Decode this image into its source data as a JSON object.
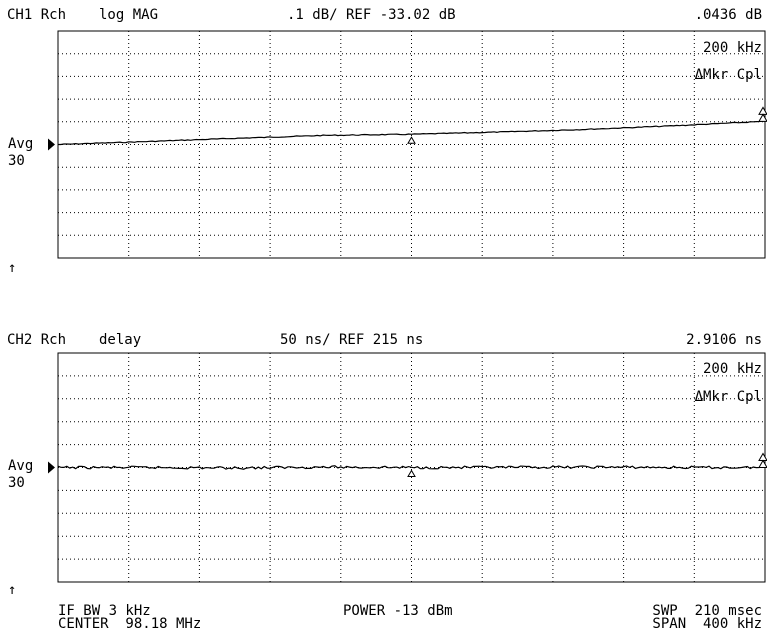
{
  "colors": {
    "background": "#ffffff",
    "trace": "#000000",
    "grid": "#000000"
  },
  "channel1": {
    "label": "CH1 Rch",
    "format": "log MAG",
    "scale": ".1 dB/ REF -33.02 dB",
    "marker_value": ".0436 dB",
    "marker_freq": "200 kHz",
    "marker_mode": "ΔMkr Cpl",
    "avg_label": "Avg",
    "avg_count": "30",
    "ref_arrow": "↑"
  },
  "channel2": {
    "label": "CH2 Rch",
    "format": "delay",
    "scale": "50 ns/ REF 215 ns",
    "marker_value": "2.9106 ns",
    "marker_freq": "200 kHz",
    "marker_mode": "ΔMkr Cpl",
    "avg_label": "Avg",
    "avg_count": "30",
    "ref_arrow": "↑"
  },
  "footer": {
    "if_bw": "IF BW 3 kHz",
    "center": "CENTER  98.18 MHz",
    "power": "POWER -13 dBm",
    "sweep": "SWP  210 msec",
    "span": "SPAN  400 kHz"
  },
  "chart_data": [
    {
      "type": "line",
      "title": "CH1 Rch log MAG",
      "x": [
        97.98,
        98.03,
        98.08,
        98.13,
        98.18,
        98.23,
        98.28,
        98.33,
        98.38
      ],
      "series": [
        {
          "values": [
            -33.02,
            -33.007,
            -32.993,
            -32.98,
            -32.975,
            -32.965,
            -32.953,
            -32.937,
            -32.918
          ]
        }
      ],
      "y_per_div": 0.1,
      "ref_level": -33.02,
      "ylim": [
        -33.52,
        -32.52
      ],
      "xlim": [
        97.98,
        98.38
      ],
      "divisions": {
        "x": 10,
        "y": 10
      },
      "marker_x": 98.18,
      "grid": true
    },
    {
      "type": "line",
      "title": "CH2 Rch delay",
      "x": [
        97.98,
        98.03,
        98.08,
        98.13,
        98.18,
        98.23,
        98.28,
        98.33,
        98.38
      ],
      "series": [
        {
          "values": [
            215,
            215,
            214,
            216,
            215,
            215,
            216,
            215,
            215
          ]
        }
      ],
      "y_per_div": 50,
      "ref_level": 215,
      "ylim": [
        -35,
        465
      ],
      "xlim": [
        97.98,
        98.38
      ],
      "divisions": {
        "x": 10,
        "y": 10
      },
      "marker_x": 98.18,
      "grid": true
    }
  ]
}
